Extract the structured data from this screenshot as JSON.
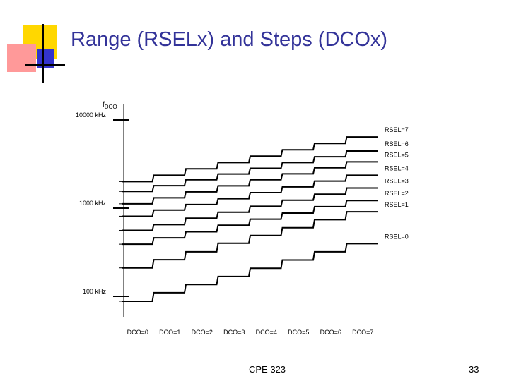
{
  "slide": {
    "title": "Range (RSELx) and Steps (DCOx)",
    "footer_center": "CPE 323",
    "page_number": "33"
  },
  "colors": {
    "title": "#333399",
    "accent_yellow": "#FFD700",
    "accent_pink": "#FF9999",
    "accent_blue": "#3333CC",
    "deco_lines": "#000000",
    "stair_lines": "#000000"
  },
  "chart_data": {
    "type": "line",
    "title": "",
    "y_axis_label": {
      "main": "f",
      "subscript": "DCO"
    },
    "y_scale": "log",
    "ylim": [
      70,
      10000
    ],
    "y_ticks": [
      {
        "value": 10000,
        "label": "10000 kHz"
      },
      {
        "value": 1000,
        "label": "1000 kHz"
      },
      {
        "value": 100,
        "label": "100 kHz"
      }
    ],
    "categories": [
      "DCO=0",
      "DCO=1",
      "DCO=2",
      "DCO=3",
      "DCO=4",
      "DCO=5",
      "DCO=6",
      "DCO=7"
    ],
    "series": [
      {
        "name": "RSEL=7",
        "values": [
          2000,
          2360,
          2790,
          3290,
          3890,
          4590,
          5420,
          6410
        ]
      },
      {
        "name": "RSEL=6",
        "values": [
          1550,
          1800,
          2100,
          2440,
          2830,
          3290,
          3830,
          4450
        ]
      },
      {
        "name": "RSEL=5",
        "values": [
          1120,
          1310,
          1530,
          1790,
          2100,
          2450,
          2870,
          3350
        ]
      },
      {
        "name": "RSEL=4",
        "values": [
          810,
          950,
          1100,
          1280,
          1500,
          1740,
          2030,
          2360
        ]
      },
      {
        "name": "RSEL=3",
        "values": [
          560,
          650,
          770,
          900,
          1050,
          1230,
          1440,
          1690
        ]
      },
      {
        "name": "RSEL=2",
        "values": [
          390,
          460,
          540,
          640,
          750,
          880,
          1040,
          1220
        ]
      },
      {
        "name": "RSEL=1",
        "values": [
          210,
          260,
          320,
          400,
          490,
          600,
          740,
          910
        ]
      },
      {
        "name": "RSEL=0",
        "values": [
          88,
          110,
          136,
          168,
          208,
          258,
          320,
          395
        ]
      }
    ]
  }
}
